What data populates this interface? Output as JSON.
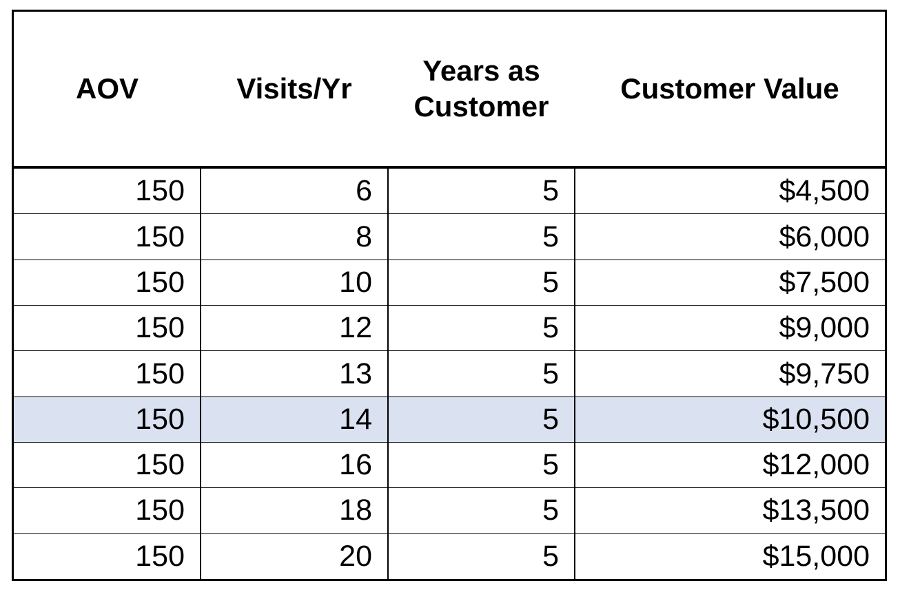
{
  "table": {
    "headers": [
      "AOV",
      "Visits/Yr",
      "Years as Customer",
      "Customer Value"
    ],
    "highlight_color": "#dae1f0",
    "rows": [
      {
        "aov": "150",
        "visits": "6",
        "years": "5",
        "value": "$4,500",
        "highlighted": false
      },
      {
        "aov": "150",
        "visits": "8",
        "years": "5",
        "value": "$6,000",
        "highlighted": false
      },
      {
        "aov": "150",
        "visits": "10",
        "years": "5",
        "value": "$7,500",
        "highlighted": false
      },
      {
        "aov": "150",
        "visits": "12",
        "years": "5",
        "value": "$9,000",
        "highlighted": false
      },
      {
        "aov": "150",
        "visits": "13",
        "years": "5",
        "value": "$9,750",
        "highlighted": false
      },
      {
        "aov": "150",
        "visits": "14",
        "years": "5",
        "value": "$10,500",
        "highlighted": true
      },
      {
        "aov": "150",
        "visits": "16",
        "years": "5",
        "value": "$12,000",
        "highlighted": false
      },
      {
        "aov": "150",
        "visits": "18",
        "years": "5",
        "value": "$13,500",
        "highlighted": false
      },
      {
        "aov": "150",
        "visits": "20",
        "years": "5",
        "value": "$15,000",
        "highlighted": false
      }
    ]
  }
}
